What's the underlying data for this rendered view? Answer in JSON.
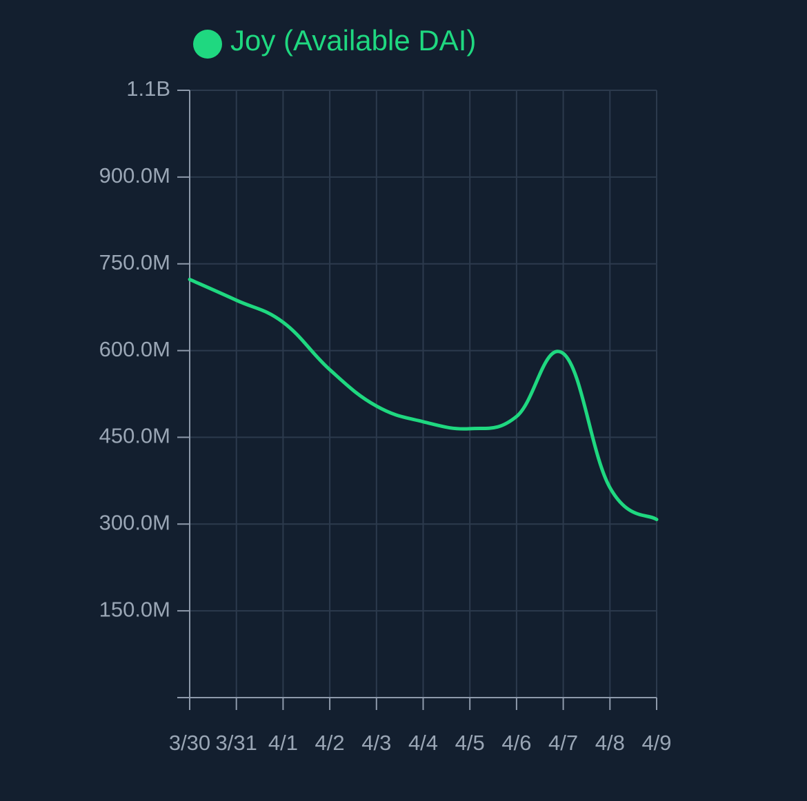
{
  "chart_data": {
    "type": "line",
    "categories": [
      "3/30",
      "3/31",
      "4/1",
      "4/2",
      "4/3",
      "4/4",
      "4/5",
      "4/6",
      "4/7",
      "4/8",
      "4/9"
    ],
    "series": [
      {
        "name": "Joy (Available DAI)",
        "color": "#1fd880",
        "values": [
          723000000,
          687000000,
          649000000,
          567000000,
          504000000,
          477000000,
          465000000,
          486000000,
          595000000,
          363000000,
          308000000
        ]
      }
    ],
    "ylim": [
      0,
      1050000000
    ],
    "yticks": [
      {
        "value": 150000000,
        "label": "150.0M"
      },
      {
        "value": 300000000,
        "label": "300.0M"
      },
      {
        "value": 450000000,
        "label": "450.0M"
      },
      {
        "value": 600000000,
        "label": "600.0M"
      },
      {
        "value": 750000000,
        "label": "750.0M"
      },
      {
        "value": 900000000,
        "label": "900.0M"
      },
      {
        "value": 1050000000,
        "label": "1.1B"
      }
    ],
    "grid": true,
    "legend": "top"
  }
}
